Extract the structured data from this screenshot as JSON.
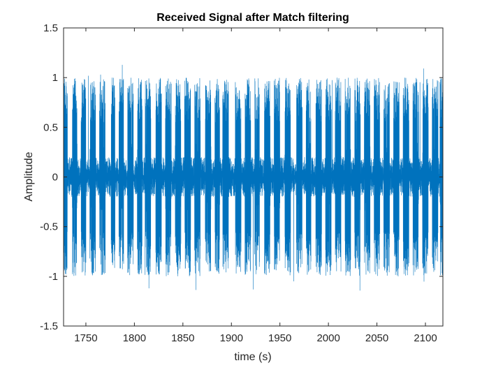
{
  "chart_data": {
    "type": "line",
    "title": "Received Signal after Match filtering",
    "xlabel": "time (s)",
    "ylabel": "Amplitude",
    "xlim": [
      1727,
      2118
    ],
    "ylim": [
      -1.5,
      1.5
    ],
    "xticks": [
      1750,
      1800,
      1850,
      1900,
      1950,
      2000,
      2050,
      2100
    ],
    "yticks": [
      -1.5,
      -1,
      -0.5,
      0,
      0.5,
      1,
      1.5
    ],
    "xtick_labels": [
      "1750",
      "1800",
      "1850",
      "1900",
      "1950",
      "2000",
      "2050",
      "2100"
    ],
    "ytick_labels": [
      "-1.5",
      "-1",
      "-0.5",
      "0",
      "0.5",
      "1",
      "1.5"
    ],
    "grid": false,
    "color": "#0072BD",
    "series": [
      {
        "name": "",
        "description": "noisy bursty signal; baseline noise about ±0.2, bursts reaching about ±1.0",
        "baseline_amplitude": 0.2,
        "burst_amplitude": 1.0,
        "bursts": [
          [
            1727,
            1731
          ],
          [
            1736,
            1741
          ],
          [
            1745,
            1750
          ],
          [
            1754,
            1760
          ],
          [
            1764,
            1770
          ],
          [
            1776,
            1780
          ],
          [
            1784,
            1789
          ],
          [
            1793,
            1799
          ],
          [
            1803,
            1808
          ],
          [
            1811,
            1817
          ],
          [
            1822,
            1828
          ],
          [
            1832,
            1838
          ],
          [
            1842,
            1848
          ],
          [
            1852,
            1858
          ],
          [
            1862,
            1868
          ],
          [
            1873,
            1879
          ],
          [
            1883,
            1888
          ],
          [
            1891,
            1897
          ],
          [
            1904,
            1910
          ],
          [
            1914,
            1920
          ],
          [
            1924,
            1929
          ],
          [
            1934,
            1940
          ],
          [
            1944,
            1950
          ],
          [
            1955,
            1961
          ],
          [
            1967,
            1973
          ],
          [
            1977,
            1982
          ],
          [
            1987,
            1993
          ],
          [
            1997,
            2003
          ],
          [
            2007,
            2013
          ],
          [
            2017,
            2023
          ],
          [
            2027,
            2033
          ],
          [
            2037,
            2043
          ],
          [
            2047,
            2053
          ],
          [
            2057,
            2063
          ],
          [
            2067,
            2073
          ],
          [
            2077,
            2083
          ],
          [
            2087,
            2093
          ],
          [
            2097,
            2103
          ],
          [
            2107,
            2113
          ],
          [
            2115,
            2118
          ]
        ]
      }
    ]
  }
}
